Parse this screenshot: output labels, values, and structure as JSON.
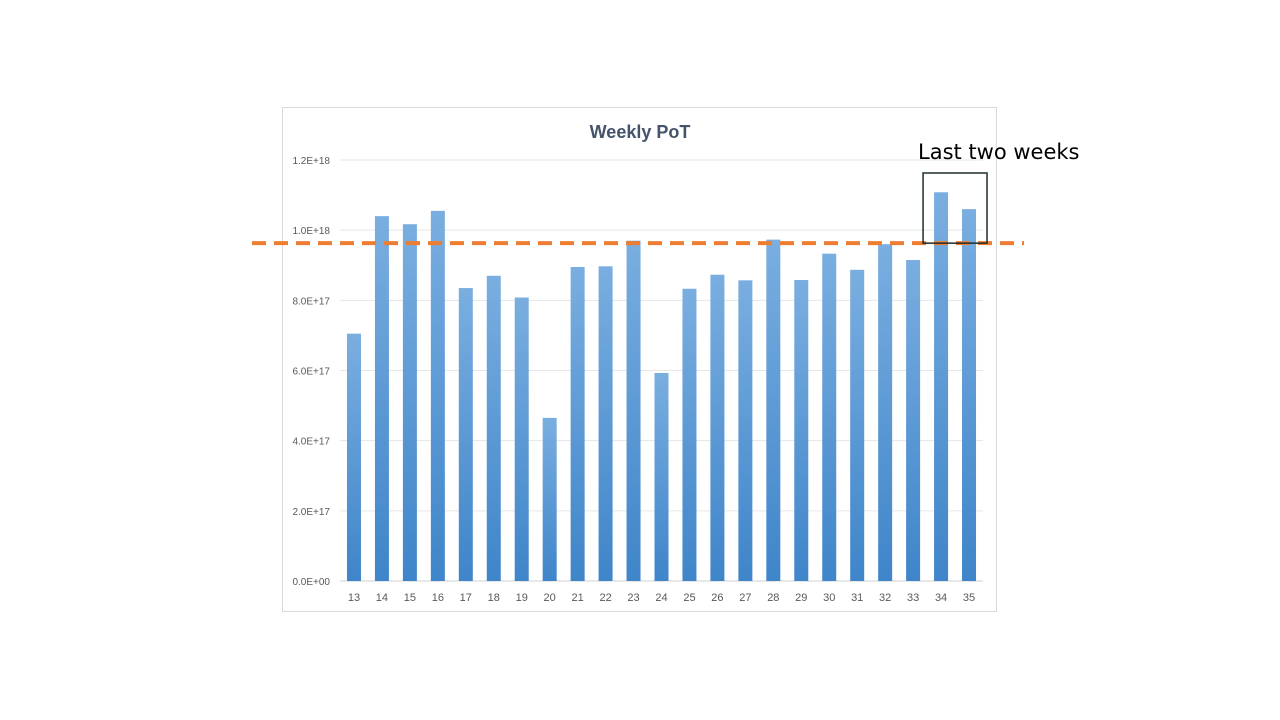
{
  "chart_data": {
    "type": "bar",
    "title": "Weekly PoT",
    "xlabel": "",
    "ylabel": "",
    "categories": [
      "13",
      "14",
      "15",
      "16",
      "17",
      "18",
      "19",
      "20",
      "21",
      "22",
      "23",
      "24",
      "25",
      "26",
      "27",
      "28",
      "29",
      "30",
      "31",
      "32",
      "33",
      "34",
      "35"
    ],
    "values": [
      7.05e+17,
      1.04e+18,
      1.017e+18,
      1.055e+18,
      8.35e+17,
      8.7e+17,
      8.08e+17,
      4.65e+17,
      8.95e+17,
      8.97e+17,
      9.7e+17,
      5.93e+17,
      8.33e+17,
      8.73e+17,
      8.57e+17,
      9.73e+17,
      8.58e+17,
      9.33e+17,
      8.87e+17,
      9.6e+17,
      9.15e+17,
      1.108e+18,
      1.06e+18
    ],
    "ylim": [
      0,
      1.2e+18
    ],
    "yticks": [
      0,
      2e+17,
      4e+17,
      6e+17,
      8e+17,
      1e+18,
      1.2e+18
    ],
    "ytick_labels": [
      "0.0E+00",
      "2.0E+17",
      "4.0E+17",
      "6.0E+17",
      "8.0E+17",
      "1.0E+18",
      "1.2E+18"
    ],
    "grid": true,
    "bar_color": "#5b9bd5",
    "reference_line": {
      "value": 9.63e+17,
      "color": "#ed7d31",
      "style": "dashed"
    },
    "annotation": {
      "text": "Last two weeks",
      "categories": [
        "34",
        "35"
      ]
    }
  }
}
